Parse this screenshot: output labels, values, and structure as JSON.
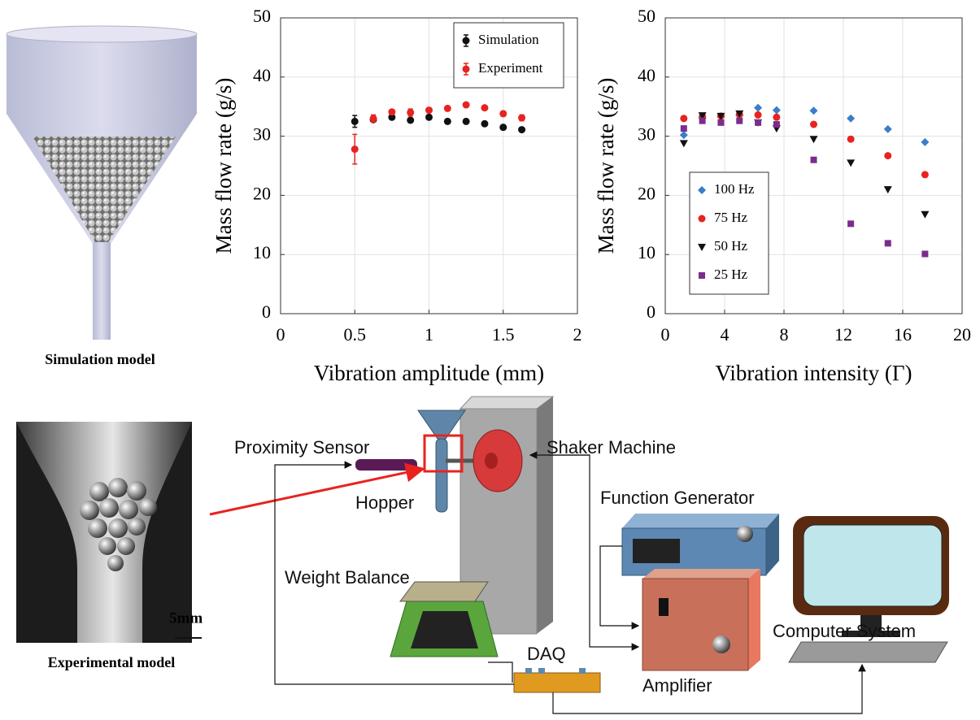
{
  "chart_data": [
    {
      "type": "scatter",
      "xlabel": "Vibration amplitude (mm)",
      "ylabel": "Mass flow rate (g/s)",
      "xlim": [
        0,
        2
      ],
      "xticks": [
        0,
        0.5,
        1,
        1.5,
        2
      ],
      "ylim": [
        0,
        50
      ],
      "yticks": [
        0,
        10,
        20,
        30,
        40,
        50
      ],
      "grid": true,
      "legend": "upper right",
      "series": [
        {
          "name": "Simulation",
          "color": "#111111",
          "marker": "circle",
          "x": [
            0.5,
            0.625,
            0.75,
            0.875,
            1.0,
            1.125,
            1.25,
            1.375,
            1.5,
            1.625
          ],
          "values": [
            32.5,
            32.8,
            33.2,
            32.7,
            33.2,
            32.5,
            32.5,
            32.1,
            31.5,
            31.1
          ],
          "errors": [
            1.0,
            0.3,
            0.3,
            0.3,
            0.3,
            0.3,
            0.3,
            0.3,
            0.4,
            0.3
          ]
        },
        {
          "name": "Experiment",
          "color": "#e8231f",
          "marker": "circle",
          "x": [
            0.5,
            0.625,
            0.75,
            0.875,
            1.0,
            1.125,
            1.25,
            1.375,
            1.5,
            1.625
          ],
          "values": [
            27.8,
            33.0,
            34.1,
            34.0,
            34.4,
            34.7,
            35.3,
            34.8,
            33.8,
            33.1
          ],
          "errors": [
            2.5,
            0.6,
            0.4,
            0.6,
            0.4,
            0.3,
            0.3,
            0.3,
            0.4,
            0.5
          ]
        }
      ]
    },
    {
      "type": "scatter",
      "xlabel": "Vibration intensity (Γ)",
      "ylabel": "Mass flow rate (g/s)",
      "xlim": [
        0,
        20
      ],
      "xticks": [
        0,
        4,
        8,
        12,
        16,
        20
      ],
      "ylim": [
        0,
        50
      ],
      "yticks": [
        0,
        10,
        20,
        30,
        40,
        50
      ],
      "grid": true,
      "legend": "lower left",
      "series": [
        {
          "name": "100 Hz",
          "color": "#3a7dc9",
          "marker": "diamond",
          "x": [
            1.25,
            2.5,
            3.75,
            5,
            6.25,
            7.5,
            10,
            12.5,
            15,
            17.5
          ],
          "values": [
            30.2,
            33.0,
            33.3,
            33.5,
            34.8,
            34.4,
            34.3,
            33.0,
            31.2,
            29.0
          ]
        },
        {
          "name": "75 Hz",
          "color": "#e8231f",
          "marker": "circle",
          "x": [
            1.25,
            2.5,
            3.75,
            5,
            6.25,
            7.5,
            10,
            12.5,
            15,
            17.5
          ],
          "values": [
            33.0,
            33.3,
            33.4,
            33.7,
            33.6,
            33.2,
            32.0,
            29.5,
            26.7,
            23.5
          ]
        },
        {
          "name": "50 Hz",
          "color": "#111111",
          "marker": "triangle-down",
          "x": [
            1.25,
            2.5,
            3.75,
            5,
            6.25,
            7.5,
            10,
            12.5,
            15,
            17.5
          ],
          "values": [
            28.8,
            33.5,
            33.4,
            33.8,
            32.3,
            31.3,
            29.5,
            25.5,
            21.0,
            16.8
          ]
        },
        {
          "name": "25 Hz",
          "color": "#7b2d8e",
          "marker": "square",
          "x": [
            1.25,
            2.5,
            3.75,
            5,
            6.25,
            7.5,
            10,
            12.5,
            15,
            17.5
          ],
          "values": [
            31.3,
            32.6,
            32.3,
            32.6,
            32.3,
            32.0,
            26.0,
            15.2,
            11.9,
            10.1
          ]
        }
      ]
    }
  ],
  "figure": {
    "simulation_caption": "Simulation model",
    "experimental_caption": "Experimental model",
    "scale_bar": "5mm",
    "diagram": {
      "proximity_sensor": "Proximity Sensor",
      "shaker_machine": "Shaker Machine",
      "hopper": "Hopper",
      "function_generator": "Function Generator",
      "weight_balance": "Weight Balance",
      "computer_system": "Computer System",
      "daq": "DAQ",
      "amplifier": "Amplifier"
    }
  }
}
